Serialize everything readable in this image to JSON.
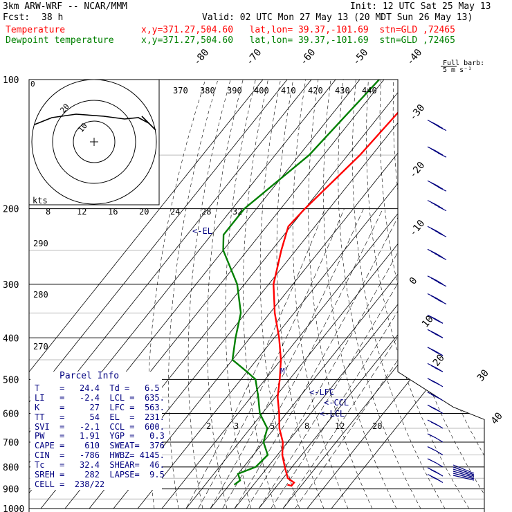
{
  "header": {
    "model": "3km ARW-WRF -- NCAR/MMM",
    "init": "Init: 12 UTC Sat 25 May 13",
    "fcst_label": "Fcst:",
    "fcst_hours": "38 h",
    "valid": "Valid: 02 UTC Mon 27 May 13 (20 MDT Sun 26 May 13)",
    "lines": [
      {
        "name": "Temperature",
        "loc": "x,y=371.27,504.60   lat,lon= 39.37,-101.69  stn=GLD ,72465",
        "color": "#ff0000"
      },
      {
        "name": "Dewpoint temperature",
        "loc": "x,y=371.27,504.60   lat,lon= 39.37,-101.69  stn=GLD ,72465",
        "color": "#008000"
      }
    ]
  },
  "barb_key": {
    "label1": "Full barb:",
    "label2": "5 m s⁻¹"
  },
  "chart_data": {
    "type": "line",
    "diagram": "skew-T log-p",
    "y_unit": "hPa",
    "pressure_ticks": [
      "100",
      "200",
      "300",
      "400",
      "500",
      "600",
      "700",
      "800",
      "900",
      "1000"
    ],
    "pressure_values": [
      100,
      200,
      300,
      400,
      500,
      600,
      700,
      800,
      900,
      1000
    ],
    "skew_temp_labels": [
      "-80",
      "-70",
      "-60",
      "-50",
      "-40",
      "-30",
      "-20",
      "-10",
      "0",
      "10",
      "20",
      "30",
      "40"
    ],
    "theta_labels": [
      "370",
      "380",
      "390",
      "400",
      "410",
      "420",
      "430",
      "440"
    ],
    "hodo_speed_labels": [
      "8",
      "12",
      "16",
      "20",
      "24",
      "28",
      "32"
    ],
    "hodo_unit": "kts",
    "hodo_ring_labels": [
      "10",
      "20"
    ],
    "theta_e_labels": [
      "290",
      "280",
      "270"
    ],
    "mixing_ratio_labels": [
      "2",
      "3",
      "5",
      "8",
      "12",
      "20"
    ],
    "annotations": [
      "EL",
      "LFC",
      "CCL",
      "LCL"
    ],
    "series": [
      {
        "name": "Temperature",
        "color": "#ff0000",
        "points": [
          [
            100,
            -52
          ],
          [
            150,
            -55
          ],
          [
            200,
            -60
          ],
          [
            220,
            -61
          ],
          [
            250,
            -56
          ],
          [
            300,
            -48
          ],
          [
            350,
            -38
          ],
          [
            400,
            -28
          ],
          [
            450,
            -20
          ],
          [
            500,
            -14
          ],
          [
            550,
            -9
          ],
          [
            600,
            -3
          ],
          [
            650,
            2
          ],
          [
            700,
            8
          ],
          [
            750,
            12
          ],
          [
            800,
            17
          ],
          [
            850,
            22
          ],
          [
            870,
            26
          ],
          [
            885,
            26
          ],
          [
            880,
            24
          ]
        ]
      },
      {
        "name": "Dewpoint temperature",
        "color": "#008000",
        "points": [
          [
            100,
            -72
          ],
          [
            150,
            -76
          ],
          [
            200,
            -85
          ],
          [
            230,
            -85
          ],
          [
            250,
            -80
          ],
          [
            300,
            -63
          ],
          [
            350,
            -52
          ],
          [
            400,
            -46
          ],
          [
            450,
            -40
          ],
          [
            480,
            -30
          ],
          [
            500,
            -24
          ],
          [
            550,
            -17
          ],
          [
            600,
            -11
          ],
          [
            650,
            -3
          ],
          [
            700,
            0
          ],
          [
            750,
            6
          ],
          [
            800,
            5
          ],
          [
            830,
            0
          ],
          [
            860,
            3
          ],
          [
            880,
            2
          ]
        ]
      }
    ],
    "wind_barbs": [
      {
        "p": 130,
        "dir": 270,
        "spd": 40
      },
      {
        "p": 150,
        "dir": 270,
        "spd": 40
      },
      {
        "p": 180,
        "dir": 270,
        "spd": 45
      },
      {
        "p": 200,
        "dir": 270,
        "spd": 45
      },
      {
        "p": 230,
        "dir": 270,
        "spd": 40
      },
      {
        "p": 260,
        "dir": 270,
        "spd": 40
      },
      {
        "p": 300,
        "dir": 275,
        "spd": 35
      },
      {
        "p": 330,
        "dir": 275,
        "spd": 35
      },
      {
        "p": 370,
        "dir": 275,
        "spd": 30
      },
      {
        "p": 400,
        "dir": 275,
        "spd": 30
      },
      {
        "p": 440,
        "dir": 275,
        "spd": 25
      },
      {
        "p": 480,
        "dir": 275,
        "spd": 25
      },
      {
        "p": 520,
        "dir": 275,
        "spd": 20
      },
      {
        "p": 560,
        "dir": 270,
        "spd": 20
      },
      {
        "p": 600,
        "dir": 270,
        "spd": 15
      },
      {
        "p": 650,
        "dir": 270,
        "spd": 15
      },
      {
        "p": 700,
        "dir": 260,
        "spd": 10
      },
      {
        "p": 750,
        "dir": 240,
        "spd": 10
      },
      {
        "p": 800,
        "dir": 220,
        "spd": 10
      },
      {
        "p": 840,
        "dir": 200,
        "spd": 15
      },
      {
        "p": 870,
        "dir": 190,
        "spd": 15
      }
    ]
  },
  "parcel_info": {
    "title": "Parcel Info",
    "rows": [
      [
        "T    =   24.4  Td =   6.5"
      ],
      [
        "LI   =   -2.4  LCL =  635."
      ],
      [
        "K    =     27  LFC =  563."
      ],
      [
        "TT   =     54  EL  =  231."
      ],
      [
        "SVI  =   -2.1  CCL =  600."
      ],
      [
        "PW   =   1.91  YGP =   0.3"
      ],
      [
        "CAPE =    610  SWEAT=  376"
      ],
      [
        "CIN  =   -786  HWBZ= 4145."
      ],
      [
        "Tc   =   32.4  SHEAR=  46."
      ],
      [
        "SREH =    282  LAPSE=  9.5"
      ],
      [
        "CELL =  238/22"
      ]
    ]
  }
}
